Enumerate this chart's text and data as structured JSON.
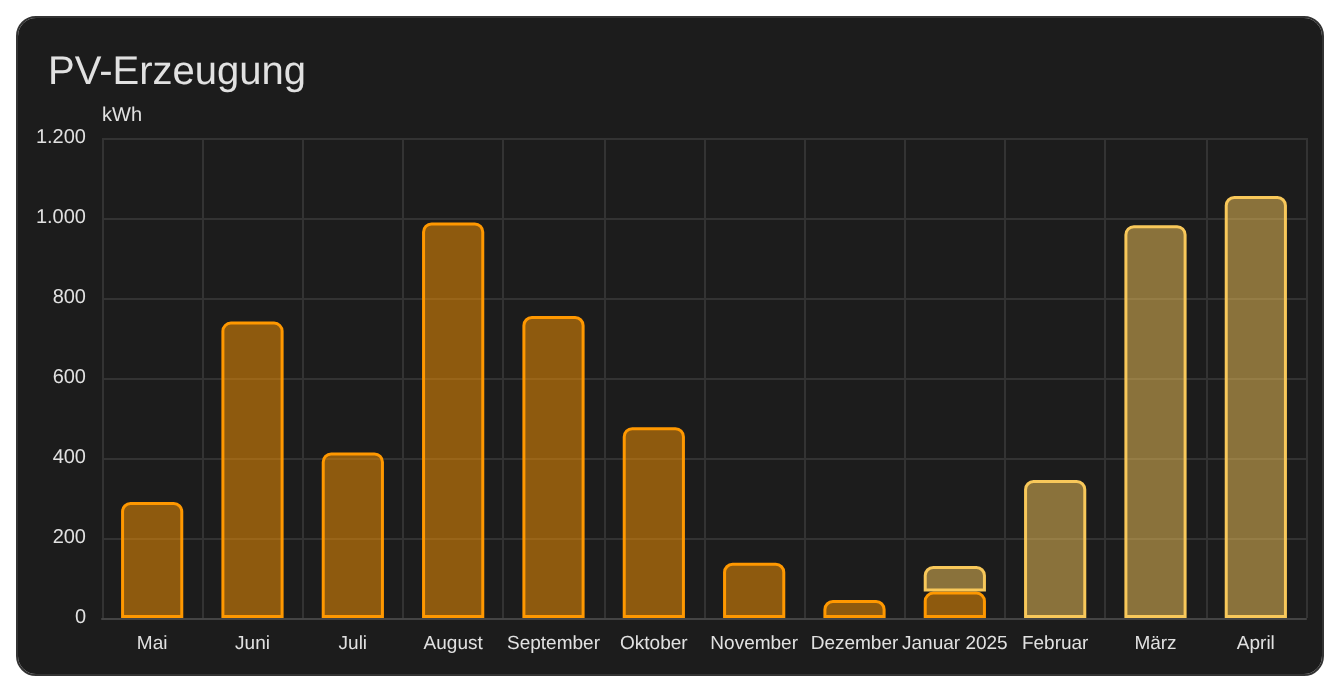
{
  "chart_data": {
    "type": "bar",
    "title": "PV-Erzeugung",
    "ylabel": "kWh",
    "stacked": true,
    "grid": true,
    "categories": [
      "Mai",
      "Juni",
      "Juli",
      "August",
      "September",
      "Oktober",
      "November",
      "Dezember",
      "Januar 2025",
      "Februar",
      "März",
      "April"
    ],
    "series": [
      {
        "color": "#ff9800",
        "values": [
          290,
          741,
          414,
          989,
          755,
          477,
          138,
          45,
          66,
          null,
          null,
          null
        ]
      },
      {
        "color": "#f8c85a",
        "values": [
          null,
          null,
          null,
          null,
          null,
          null,
          null,
          null,
          64,
          345,
          982,
          1055
        ]
      }
    ],
    "ylim": [
      0,
      1200
    ],
    "yticks": [
      0,
      200,
      400,
      600,
      800,
      {
        "value": 1000,
        "label": "1.000"
      },
      {
        "value": 1200,
        "label": "1.200"
      }
    ]
  }
}
